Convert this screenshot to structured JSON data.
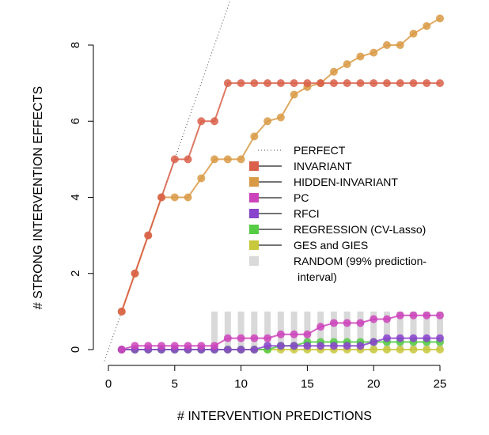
{
  "chart_data": {
    "type": "line",
    "xlabel": "# INTERVENTION PREDICTIONS",
    "ylabel": "# STRONG INTERVENTION EFFECTS",
    "xlim": [
      0,
      25
    ],
    "ylim": [
      0,
      8
    ],
    "xticks": [
      0,
      5,
      10,
      15,
      20,
      25
    ],
    "yticks": [
      0,
      2,
      4,
      6,
      8
    ],
    "grid": false,
    "legend_position": "center-right",
    "x": [
      1,
      2,
      3,
      4,
      5,
      6,
      7,
      8,
      9,
      10,
      11,
      12,
      13,
      14,
      15,
      16,
      17,
      18,
      19,
      20,
      21,
      22,
      23,
      24,
      25
    ],
    "perfect": {
      "name": "PERFECT",
      "color": "#444444",
      "style": "dotted"
    },
    "random": {
      "name": "RANDOM (99% prediction-",
      "name_line2": "interval)",
      "color": "#d9d9d9",
      "x": [
        8,
        9,
        10,
        11,
        12,
        13,
        14,
        15,
        16,
        17,
        18,
        19,
        20,
        21,
        22,
        23,
        24,
        25
      ],
      "low": [
        0,
        0,
        0,
        0,
        0,
        0,
        0,
        0,
        0,
        0,
        0,
        0,
        0,
        0,
        0,
        0,
        0,
        0
      ],
      "high": [
        1,
        1,
        1,
        1,
        1,
        1,
        1,
        1,
        1,
        1,
        1,
        1,
        1,
        1,
        1,
        1,
        1,
        1
      ]
    },
    "series": [
      {
        "name": "INVARIANT",
        "color": "#d9604a",
        "values": [
          1,
          2,
          3,
          4,
          5,
          5,
          6,
          6,
          7,
          7,
          7,
          7,
          7,
          7,
          7,
          7,
          7,
          7,
          7,
          7,
          7,
          7,
          7,
          7,
          7
        ]
      },
      {
        "name": "HIDDEN-INVARIANT",
        "color": "#d99a45",
        "values": [
          1,
          2,
          3,
          4,
          4,
          4,
          4.5,
          5,
          5,
          5,
          5.6,
          6,
          6.1,
          6.7,
          6.9,
          7,
          7.3,
          7.5,
          7.7,
          7.8,
          8,
          8,
          8.3,
          8.5,
          8.7
        ]
      },
      {
        "name": "PC",
        "color": "#cc44bb",
        "values": [
          0,
          0.1,
          0.1,
          0.1,
          0.1,
          0.1,
          0.1,
          0.1,
          0.3,
          0.3,
          0.3,
          0.3,
          0.4,
          0.4,
          0.4,
          0.6,
          0.7,
          0.7,
          0.7,
          0.8,
          0.8,
          0.9,
          0.9,
          0.9,
          0.9
        ]
      },
      {
        "name": "RFCI",
        "color": "#8844cc",
        "values": [
          0,
          0,
          0,
          0,
          0,
          0,
          0,
          0,
          0,
          0,
          0,
          0.1,
          0.1,
          0.1,
          0.1,
          0.1,
          0.1,
          0.1,
          0.1,
          0.2,
          0.3,
          0.3,
          0.3,
          0.3,
          0.3
        ]
      },
      {
        "name": "REGRESSION (CV-Lasso)",
        "color": "#55cc44",
        "values": [
          0,
          0,
          0,
          0,
          0,
          0,
          0,
          0,
          0,
          0,
          0,
          0,
          0.1,
          0.1,
          0.2,
          0.2,
          0.2,
          0.2,
          0.2,
          0.2,
          0.2,
          0.2,
          0.2,
          0.2,
          0.2
        ]
      },
      {
        "name": "GES and GIES",
        "color": "#c8c83c",
        "values": [
          0,
          0,
          0,
          0,
          0,
          0,
          0,
          0,
          0,
          0,
          0,
          0,
          0,
          0,
          0,
          0,
          0,
          0,
          0,
          0,
          0,
          0,
          0,
          0,
          0
        ]
      }
    ]
  }
}
